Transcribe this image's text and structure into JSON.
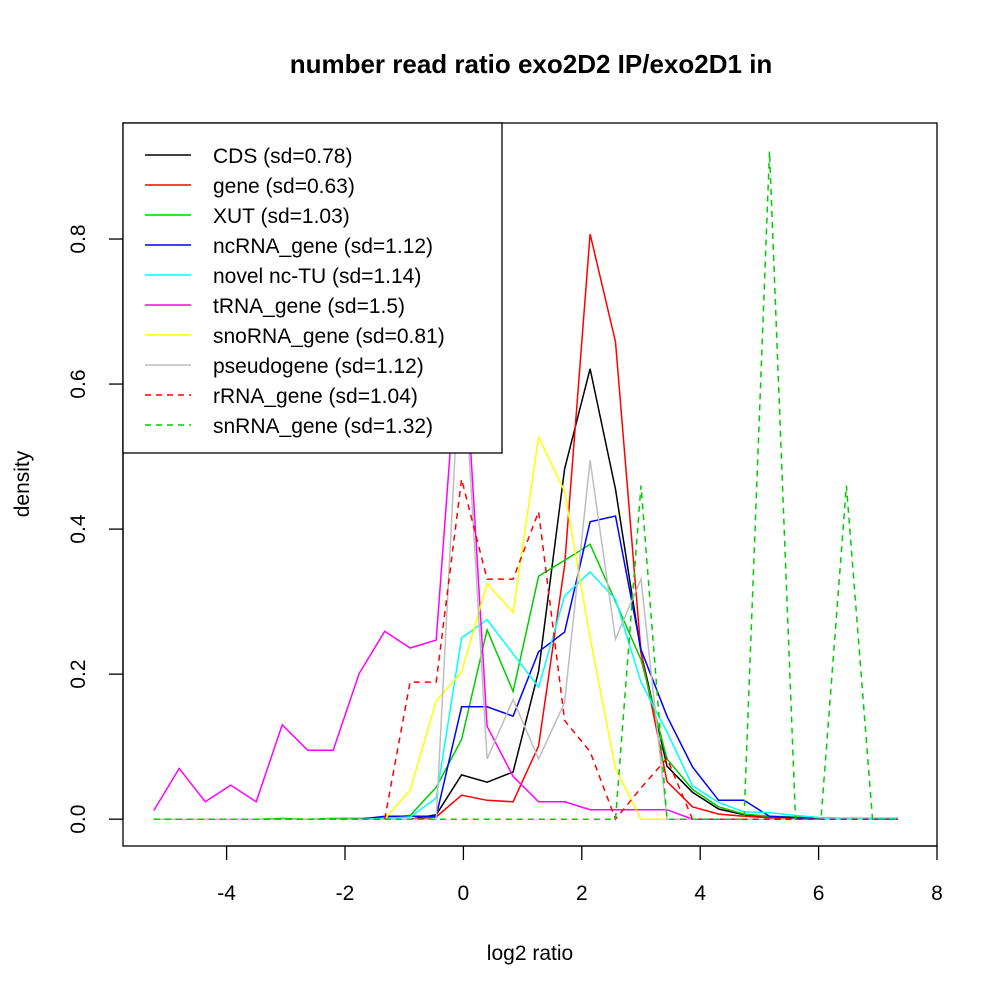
{
  "chart_data": {
    "type": "line",
    "title": "number read ratio exo2D2 IP/exo2D1 in",
    "xlabel": "log2 ratio",
    "ylabel": "density",
    "xlim": [
      -5.75,
      8.0
    ],
    "ylim": [
      -0.037,
      0.96
    ],
    "x_ticks": [
      -4,
      -2,
      0,
      2,
      4,
      6,
      8
    ],
    "x_tick_labels": [
      "-4",
      "-2",
      "0",
      "2",
      "4",
      "6",
      "8"
    ],
    "y_ticks": [
      0.0,
      0.2,
      0.4,
      0.6,
      0.8
    ],
    "y_tick_labels": [
      "0.0",
      "0.2",
      "0.4",
      "0.6",
      "0.8"
    ],
    "grid": false,
    "legend_position": "top-left",
    "x": [
      -5.23,
      -4.8,
      -4.36,
      -3.93,
      -3.5,
      -3.06,
      -2.63,
      -2.2,
      -1.76,
      -1.33,
      -0.9,
      -0.46,
      -0.03,
      0.4,
      0.84,
      1.27,
      1.71,
      2.14,
      2.57,
      3.0,
      3.44,
      3.87,
      4.31,
      4.74,
      5.17,
      5.61,
      6.04,
      6.47,
      6.91,
      7.34
    ],
    "series": [
      {
        "name": "CDS (sd=0.78)",
        "color": "#000000",
        "dash": false,
        "values": [
          0,
          0,
          0,
          0,
          0,
          0,
          0,
          0,
          0,
          0,
          0,
          0.006,
          0.061,
          0.051,
          0.065,
          0.204,
          0.483,
          0.621,
          0.455,
          0.23,
          0.073,
          0.037,
          0.014,
          0.006,
          0.003,
          0.002,
          0.001,
          0.001,
          0,
          0
        ]
      },
      {
        "name": "gene (sd=0.63)",
        "color": "#ff0000",
        "dash": false,
        "values": [
          0,
          0,
          0,
          0,
          0,
          0,
          0,
          0,
          0,
          0,
          0,
          0.003,
          0.033,
          0.026,
          0.024,
          0.101,
          0.35,
          0.807,
          0.658,
          0.23,
          0.052,
          0.017,
          0.007,
          0.004,
          0.002,
          0.001,
          0.001,
          0,
          0,
          0
        ]
      },
      {
        "name": "XUT (sd=1.03)",
        "color": "#00cd00",
        "dash": false,
        "values": [
          0,
          0,
          0,
          0,
          0,
          0.001,
          0,
          0.001,
          0.001,
          0.002,
          0.005,
          0.044,
          0.11,
          0.261,
          0.176,
          0.335,
          0.357,
          0.379,
          0.3,
          0.22,
          0.083,
          0.041,
          0.017,
          0.007,
          0.004,
          0.003,
          0.002,
          0.001,
          0,
          0.001
        ]
      },
      {
        "name": "ncRNA_gene (sd=1.12)",
        "color": "#0000ff",
        "dash": false,
        "values": [
          0,
          0,
          0,
          0,
          0,
          0,
          0,
          0,
          0,
          0.004,
          0.004,
          0.004,
          0.155,
          0.155,
          0.142,
          0.231,
          0.258,
          0.41,
          0.418,
          0.234,
          0.142,
          0.072,
          0.026,
          0.026,
          0.004,
          0.002,
          0.001,
          0.001,
          0.001,
          0.001
        ]
      },
      {
        "name": "novel nc-TU (sd=1.14)",
        "color": "#00ffff",
        "dash": false,
        "values": [
          0,
          0,
          0,
          0,
          0,
          0,
          0,
          0,
          0,
          0.001,
          0.003,
          0.029,
          0.25,
          0.275,
          0.228,
          0.182,
          0.308,
          0.341,
          0.303,
          0.189,
          0.12,
          0.046,
          0.023,
          0.01,
          0.009,
          0.005,
          0.002,
          0.001,
          0.001,
          0.001
        ]
      },
      {
        "name": "tRNA_gene (sd=1.5)",
        "color": "#ff00ff",
        "dash": false,
        "values": [
          0.012,
          0.07,
          0.024,
          0.047,
          0.024,
          0.13,
          0.095,
          0.095,
          0.201,
          0.259,
          0.236,
          0.247,
          0.72,
          0.128,
          0.059,
          0.024,
          0.024,
          0.013,
          0.013,
          0.013,
          0.013,
          0,
          0,
          0,
          0,
          0,
          0,
          0,
          0,
          0
        ]
      },
      {
        "name": "snoRNA_gene (sd=0.81)",
        "color": "#ffff00",
        "dash": false,
        "values": [
          0,
          0,
          0,
          0,
          0,
          0,
          0,
          0,
          0,
          0,
          0.04,
          0.163,
          0.203,
          0.325,
          0.285,
          0.527,
          0.452,
          0.25,
          0.07,
          0,
          0,
          0,
          0,
          0,
          0,
          0,
          0,
          0,
          0,
          0
        ]
      },
      {
        "name": "pseudogene (sd=1.12)",
        "color": "#bebebe",
        "dash": false,
        "values": [
          0,
          0,
          0,
          0,
          0,
          0,
          0,
          0,
          0,
          0,
          0,
          0,
          0.68,
          0.083,
          0.165,
          0.083,
          0.161,
          0.495,
          0.248,
          0.331,
          0,
          0,
          0,
          0,
          0,
          0,
          0,
          0,
          0,
          0
        ]
      },
      {
        "name": "rRNA_gene (sd=1.04)",
        "color": "#ff0000",
        "dash": true,
        "values": [
          0,
          0,
          0,
          0,
          0,
          0,
          0,
          0,
          0,
          0,
          0.189,
          0.189,
          0.469,
          0.331,
          0.331,
          0.424,
          0.136,
          0.093,
          0,
          0.043,
          0.084,
          0,
          0,
          0,
          0,
          0,
          0,
          0,
          0,
          0
        ]
      },
      {
        "name": "snRNA_gene (sd=1.32)",
        "color": "#00cd00",
        "dash": true,
        "values": [
          0,
          0,
          0,
          0,
          0,
          0,
          0,
          0,
          0,
          0,
          0,
          0,
          0,
          0,
          0,
          0,
          0,
          0,
          0,
          0.46,
          0,
          0,
          0,
          0,
          0.921,
          0,
          0,
          0.46,
          0,
          0
        ]
      }
    ]
  }
}
